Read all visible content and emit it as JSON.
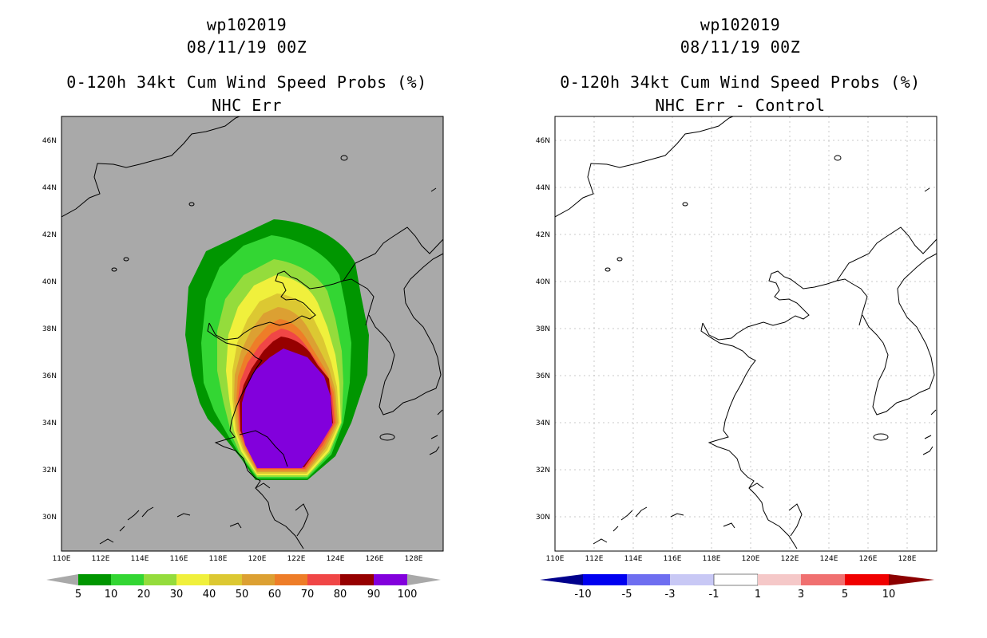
{
  "colors": {
    "land_gray": "#a9a9a9",
    "outline": "#000000",
    "grid": "#c8c8c8",
    "prob_bins": [
      "#009600",
      "#33d633",
      "#94dc3c",
      "#f0f03c",
      "#dcc832",
      "#dca032",
      "#ee7d28",
      "#f04646",
      "#960000",
      "#8200dc"
    ],
    "diff_bins": [
      "#00008c",
      "#0000f0",
      "#6e6ef0",
      "#c8c8f5",
      "#ffffff",
      "#f5c8c8",
      "#f07070",
      "#f00000",
      "#8c0000"
    ]
  },
  "left": {
    "title_id": "wp102019",
    "datetime": "08/11/19 00Z",
    "product": "0-120h 34kt Cum Wind Speed Probs (%)",
    "subtitle": "NHC Err"
  },
  "right": {
    "title_id": "wp102019",
    "datetime": "08/11/19 00Z",
    "product": "0-120h 34kt Cum Wind Speed Probs (%)",
    "subtitle": "NHC Err - Control"
  },
  "axes": {
    "lon_labels": [
      "110E",
      "112E",
      "114E",
      "116E",
      "118E",
      "120E",
      "122E",
      "124E",
      "126E",
      "128E"
    ],
    "lat_labels": [
      "30N",
      "32N",
      "34N",
      "36N",
      "38N",
      "40N",
      "42N",
      "44N",
      "46N"
    ]
  },
  "left_colorbar": {
    "labels": [
      "5",
      "10",
      "20",
      "30",
      "40",
      "50",
      "60",
      "70",
      "80",
      "90",
      "100"
    ]
  },
  "right_colorbar": {
    "labels": [
      "-10",
      "-5",
      "-3",
      "-1",
      "1",
      "3",
      "5",
      "10"
    ]
  },
  "chart_data": {
    "type": "map",
    "region": {
      "lon_range": [
        110,
        129.5
      ],
      "lat_range": [
        28.5,
        47
      ]
    },
    "probability_contours_pct": [
      5,
      10,
      20,
      30,
      40,
      50,
      60,
      70,
      80,
      90,
      100
    ],
    "max_probability_region": "East China Sea / Yellow Sea coast near 119-124E, 31.5-37N",
    "difference_field": "0 everywhere"
  }
}
